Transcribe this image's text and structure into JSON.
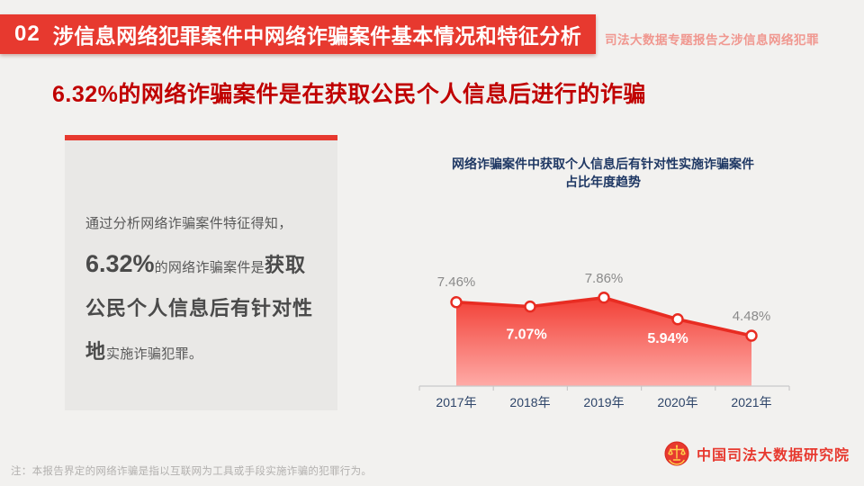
{
  "header": {
    "badge": "02",
    "title": "涉信息网络犯罪案件中网络诈骗案件基本情况和特征分析",
    "side_note": "司法大数据专题报告之涉信息网络犯罪"
  },
  "headline": "6.32%的网络诈骗案件是在获取公民个人信息后进行的诈骗",
  "info_box": {
    "seg_intro": "通过分析网络诈骗案件特征得知，",
    "seg_pct": "6.32%",
    "seg_mid": "的网络诈骗案件是",
    "seg_big": "获取公民个人信息后有针对性地",
    "seg_end": "实施诈骗犯罪。"
  },
  "chart_data": {
    "type": "area",
    "title_line1": "网络诈骗案件中获取个人信息后有针对性实施诈骗案件",
    "title_line2": "占比年度趋势",
    "categories": [
      "2017年",
      "2018年",
      "2019年",
      "2020年",
      "2021年"
    ],
    "values": [
      7.46,
      7.07,
      7.86,
      5.94,
      4.48
    ],
    "labels": [
      "7.46%",
      "7.07%",
      "7.86%",
      "5.94%",
      "4.48%"
    ],
    "ylabel": "",
    "xlabel": "",
    "ylim": [
      0,
      11
    ],
    "grid": false,
    "legend": false,
    "label_positions": [
      "above",
      "inside",
      "above",
      "inside",
      "above"
    ],
    "colors": {
      "line": "#e82c22",
      "area_top": "#f2382e",
      "area_bottom": "#ffa7a3",
      "point_fill": "#ffffff",
      "label_gray": "#8a8a8a",
      "label_white": "#ffffff",
      "axis": "#c9c9c9",
      "tick_label": "#2e4569"
    }
  },
  "footer": {
    "note": "注：本报告界定的网络诈骗是指以互联网为工具或手段实施诈骗的犯罪行为。",
    "org_name": "中国司法大数据研究院"
  },
  "theme": {
    "accent_red": "#e7392f",
    "headline_red": "#c00000",
    "navy": "#1f3864",
    "background": "#f2f1ef",
    "box_gray": "#e9e8e6"
  }
}
